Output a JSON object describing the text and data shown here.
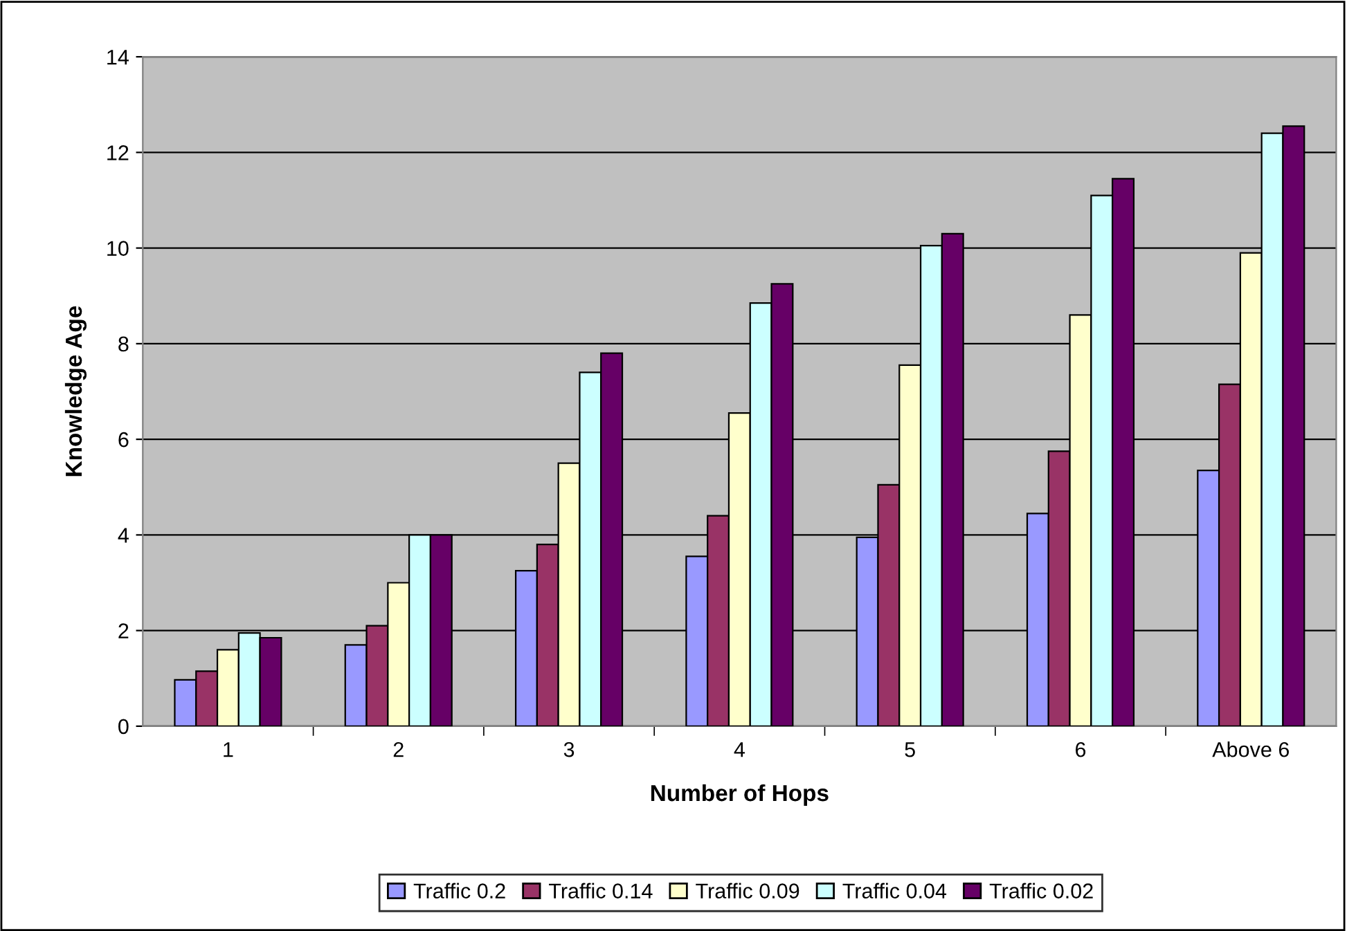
{
  "chart_data": {
    "type": "bar",
    "xlabel": "Number of Hops",
    "ylabel": "Knowledge Age",
    "categories": [
      "1",
      "2",
      "3",
      "4",
      "5",
      "6",
      "Above 6"
    ],
    "series": [
      {
        "name": "Traffic 0.2",
        "color": "#9999ff",
        "values": [
          0.97,
          1.7,
          3.25,
          3.55,
          3.95,
          4.45,
          5.35
        ]
      },
      {
        "name": "Traffic 0.14",
        "color": "#993366",
        "values": [
          1.15,
          2.1,
          3.8,
          4.4,
          5.05,
          5.75,
          7.15
        ]
      },
      {
        "name": "Traffic 0.09",
        "color": "#ffffcc",
        "values": [
          1.6,
          3.0,
          5.5,
          6.55,
          7.55,
          8.6,
          9.9
        ]
      },
      {
        "name": "Traffic 0.04",
        "color": "#ccffff",
        "values": [
          1.95,
          4.0,
          7.4,
          8.85,
          10.05,
          11.1,
          12.4
        ]
      },
      {
        "name": "Traffic 0.02",
        "color": "#660066",
        "values": [
          1.85,
          4.0,
          7.8,
          9.25,
          10.3,
          11.45,
          12.55
        ]
      }
    ],
    "ylim": [
      0,
      14
    ],
    "yticks": [
      0,
      2,
      4,
      6,
      8,
      10,
      12,
      14
    ],
    "grid": "y",
    "legend": "bottom"
  }
}
